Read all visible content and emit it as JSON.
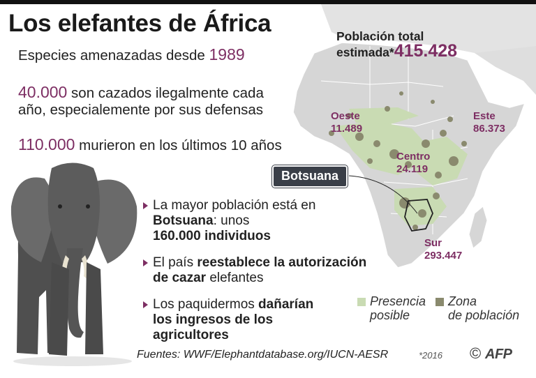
{
  "title": "Los elefantes de África",
  "stats": {
    "line1_text": "Especies amenazadas desde ",
    "line1_value": "1989",
    "line2_value": "40.000",
    "line2_text_a": " son cazados ilegalmente cada",
    "line2_text_b": "año, especialemente por sus defensas",
    "line3_value": "110.000",
    "line3_text": " murieron en los últimos 10 años"
  },
  "map": {
    "total_label_a": "Población total",
    "total_label_b": "estimada*",
    "total_value": "415.428",
    "regions": [
      {
        "name": "Oeste",
        "value": "11.489"
      },
      {
        "name": "Este",
        "value": "86.373"
      },
      {
        "name": "Centro",
        "value": "24.119"
      },
      {
        "name": "Sur",
        "value": "293.447"
      }
    ],
    "highlight_country": "Botsuana",
    "colors": {
      "land": "#d9d9d9",
      "presence": "#c9dbb3",
      "population": "#8a8a6e",
      "accent": "#7d2e63"
    }
  },
  "bullets": [
    {
      "a": "La mayor población está en ",
      "b": "Botsuana",
      "c": ": unos ",
      "d": "160.000 individuos"
    },
    {
      "a": "El país ",
      "b": "reestablece la autorización",
      "c": "de cazar",
      "d": " elefantes"
    },
    {
      "a": "Los paquidermos ",
      "b": "dañarían",
      "c": "los ingresos de los",
      "d": "agricultores"
    }
  ],
  "legend": {
    "presence_a": "Presencia",
    "presence_b": "posible",
    "zone_a": "Zona",
    "zone_b": "de población"
  },
  "footer": {
    "sources": "Fuentes: WWF/Elephantdatabase.org/IUCN-AESR",
    "year": "*2016",
    "copyright": "©",
    "brand": "AFP"
  }
}
